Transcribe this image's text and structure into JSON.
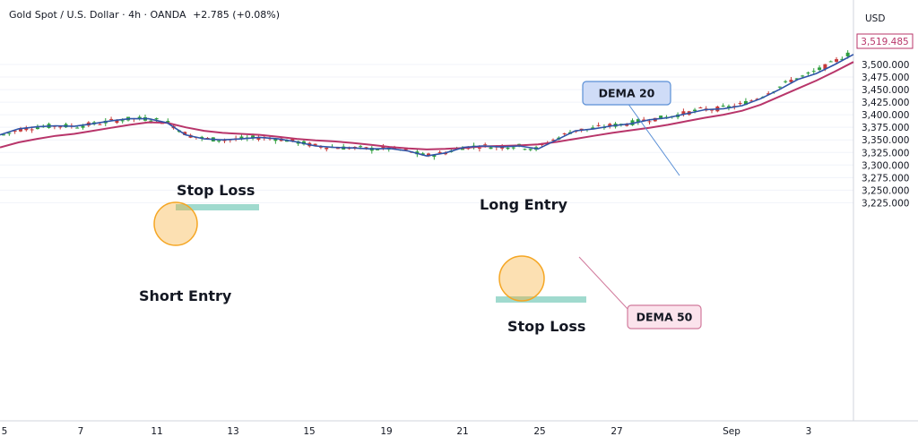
{
  "header": {
    "instrument": "Gold Spot / U.S. Dollar · 4h · OANDA",
    "change": "+2.785 (+0.08%)"
  },
  "colors": {
    "up": "#26a69a",
    "up_body": "#2e9e3e",
    "down": "#c73a3a",
    "dema20": "#2f54a8",
    "dema50": "#b8356a",
    "zone": "#8fd4c6",
    "circle": "#f5a623",
    "price_tag": "#b8356a"
  },
  "chart_data": {
    "type": "candlestick",
    "currency_label": "USD",
    "last_price": "3,519.485",
    "ylim": [
      3225,
      3550
    ],
    "y_ticks": [
      "3,500.000",
      "3,475.000",
      "3,450.000",
      "3,425.000",
      "3,400.000",
      "3,375.000",
      "3,350.000",
      "3,325.000",
      "3,300.000",
      "3,275.000",
      "3,250.000",
      "3,225.000"
    ],
    "x_ticks": [
      "5",
      "7",
      "11",
      "13",
      "15",
      "19",
      "21",
      "25",
      "27",
      "Sep",
      "3"
    ],
    "series": [
      {
        "name": "DEMA 20",
        "values": [
          3360,
          3372,
          3376,
          3378,
          3377,
          3382,
          3388,
          3392,
          3392,
          3384,
          3360,
          3352,
          3350,
          3352,
          3355,
          3352,
          3346,
          3338,
          3335,
          3334,
          3332,
          3333,
          3328,
          3318,
          3324,
          3335,
          3338,
          3336,
          3338,
          3332,
          3350,
          3368,
          3372,
          3378,
          3382,
          3390,
          3394,
          3402,
          3410,
          3412,
          3418,
          3432,
          3450,
          3470,
          3482,
          3500,
          3520
        ]
      },
      {
        "name": "DEMA 50",
        "values": [
          3335,
          3345,
          3352,
          3358,
          3362,
          3368,
          3374,
          3380,
          3385,
          3384,
          3375,
          3368,
          3364,
          3362,
          3360,
          3356,
          3352,
          3349,
          3347,
          3344,
          3340,
          3336,
          3333,
          3331,
          3332,
          3334,
          3337,
          3338,
          3339,
          3341,
          3346,
          3352,
          3358,
          3364,
          3369,
          3374,
          3380,
          3387,
          3394,
          3400,
          3408,
          3420,
          3436,
          3452,
          3468,
          3486,
          3505
        ]
      }
    ],
    "annotations": [
      "Stop Loss",
      "Short Entry",
      "Long Entry",
      "Stop Loss",
      "DEMA 20",
      "DEMA 50"
    ]
  },
  "annotations": {
    "stop_loss_top": "Stop Loss",
    "short_entry": "Short Entry",
    "long_entry": "Long Entry",
    "stop_loss_bottom": "Stop Loss",
    "dema20_label": "DEMA 20",
    "dema50_label": "DEMA 50"
  }
}
